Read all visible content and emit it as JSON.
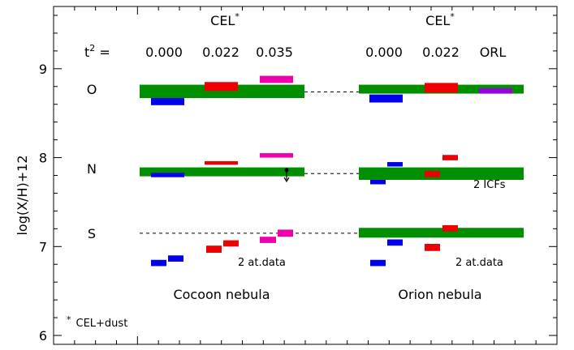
{
  "chart_data": {
    "type": "other",
    "ylabel": "log(X/H)+12",
    "ylim": [
      5.9,
      9.7
    ],
    "yticks": [
      6,
      7,
      8,
      9
    ],
    "colors": {
      "box": "#008f00",
      "t2_0": "#0000ee",
      "t2_022": "#ee0000",
      "t2_035": "#ee00aa",
      "orl": "#9a00e0"
    },
    "column_headers": [
      {
        "text": "CEL",
        "sup": "*"
      },
      {
        "text": "CEL",
        "sup": "*"
      }
    ],
    "t2_label": {
      "text": "t",
      "sup": "2",
      "suffix": " ="
    },
    "t2_values": [
      "0.000",
      "0.022",
      "0.035",
      "0.000",
      "0.022",
      "ORL"
    ],
    "element_labels": [
      "O",
      "N",
      "S"
    ],
    "panel_labels": [
      "Cocoon nebula",
      "Orion nebula"
    ],
    "annotations": [
      "2 ICFs",
      "2 at.data",
      "2 at.data"
    ],
    "footnote": {
      "marker": "*",
      "text": "CEL+dust"
    },
    "bands": [
      {
        "nebula": "Cocoon",
        "element": "O",
        "ymin": 8.67,
        "ymax": 8.82
      },
      {
        "nebula": "Cocoon",
        "element": "N",
        "ymin": 7.79,
        "ymax": 7.89
      },
      {
        "nebula": "Orion",
        "element": "O",
        "ymin": 8.72,
        "ymax": 8.82
      },
      {
        "nebula": "Orion",
        "element": "N",
        "ymin": 7.75,
        "ymax": 7.89
      },
      {
        "nebula": "Orion",
        "element": "S",
        "ymin": 7.1,
        "ymax": 7.21
      }
    ],
    "reference_lines": [
      {
        "element": "O",
        "y": 8.74
      },
      {
        "element": "N",
        "y": 7.82
      },
      {
        "element": "S",
        "y": 7.15
      }
    ],
    "measurements": [
      {
        "nebula": "Cocoon",
        "element": "O",
        "t2": "0.000",
        "ymin": 8.59,
        "ymax": 8.67
      },
      {
        "nebula": "Cocoon",
        "element": "O",
        "t2": "0.022",
        "ymin": 8.75,
        "ymax": 8.85
      },
      {
        "nebula": "Cocoon",
        "element": "O",
        "t2": "0.035",
        "ymin": 8.84,
        "ymax": 8.92
      },
      {
        "nebula": "Cocoon",
        "element": "N",
        "t2": "0.000",
        "ymin": 7.78,
        "ymax": 7.83
      },
      {
        "nebula": "Cocoon",
        "element": "N",
        "t2": "0.022",
        "ymin": 7.92,
        "ymax": 7.96
      },
      {
        "nebula": "Cocoon",
        "element": "N",
        "t2": "0.035",
        "ymin": 8.0,
        "ymax": 8.05
      },
      {
        "nebula": "Cocoon",
        "element": "S",
        "t2": "0.000",
        "ymin": 6.78,
        "ymax": 6.85
      },
      {
        "nebula": "Cocoon",
        "element": "S",
        "t2": "0.000",
        "ymin": 6.83,
        "ymax": 6.9
      },
      {
        "nebula": "Cocoon",
        "element": "S",
        "t2": "0.022",
        "ymin": 6.93,
        "ymax": 7.01
      },
      {
        "nebula": "Cocoon",
        "element": "S",
        "t2": "0.022",
        "ymin": 7.0,
        "ymax": 7.07
      },
      {
        "nebula": "Cocoon",
        "element": "S",
        "t2": "0.035",
        "ymin": 7.04,
        "ymax": 7.11
      },
      {
        "nebula": "Cocoon",
        "element": "S",
        "t2": "0.035",
        "ymin": 7.11,
        "ymax": 7.19
      },
      {
        "nebula": "Orion",
        "element": "O",
        "t2": "0.000",
        "ymin": 8.62,
        "ymax": 8.71
      },
      {
        "nebula": "Orion",
        "element": "O",
        "t2": "0.022",
        "ymin": 8.73,
        "ymax": 8.84
      },
      {
        "nebula": "Orion",
        "element": "O",
        "t2": "ORL",
        "ymin": 8.72,
        "ymax": 8.78
      },
      {
        "nebula": "Orion",
        "element": "N",
        "t2": "0.000",
        "ymin": 7.7,
        "ymax": 7.75
      },
      {
        "nebula": "Orion",
        "element": "N",
        "t2": "0.000",
        "ymin": 7.9,
        "ymax": 7.95
      },
      {
        "nebula": "Orion",
        "element": "N",
        "t2": "0.022",
        "ymin": 7.78,
        "ymax": 7.85
      },
      {
        "nebula": "Orion",
        "element": "N",
        "t2": "0.022",
        "ymin": 7.97,
        "ymax": 8.03
      },
      {
        "nebula": "Orion",
        "element": "S",
        "t2": "0.000",
        "ymin": 6.78,
        "ymax": 6.85
      },
      {
        "nebula": "Orion",
        "element": "S",
        "t2": "0.000",
        "ymin": 7.01,
        "ymax": 7.08
      },
      {
        "nebula": "Orion",
        "element": "S",
        "t2": "0.022",
        "ymin": 6.95,
        "ymax": 7.03
      },
      {
        "nebula": "Orion",
        "element": "S",
        "t2": "0.022",
        "ymin": 7.17,
        "ymax": 7.24
      }
    ],
    "upper_limits": [
      {
        "nebula": "Cocoon",
        "element": "N",
        "y": 7.86,
        "direction": "down"
      }
    ]
  }
}
